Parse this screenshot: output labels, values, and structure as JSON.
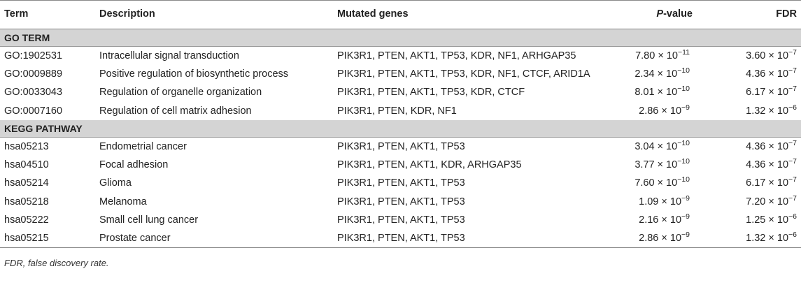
{
  "headers": {
    "term": "Term",
    "description": "Description",
    "genes": "Mutated genes",
    "p_italic": "P",
    "p_rest": "-value",
    "fdr": "FDR"
  },
  "sections": [
    {
      "title": "GO TERM",
      "rows": [
        {
          "term": "GO:1902531",
          "description": "Intracellular signal transduction",
          "genes": "PIK3R1, PTEN, AKT1, TP53, KDR, NF1, ARHGAP35",
          "p_mant": "7.80 × 10",
          "p_exp": "−11",
          "fdr_mant": "3.60 × 10",
          "fdr_exp": "−7"
        },
        {
          "term": "GO:0009889",
          "description": "Positive regulation of biosynthetic process",
          "genes": "PIK3R1, PTEN, AKT1, TP53, KDR, NF1, CTCF, ARID1A",
          "p_mant": "2.34 × 10",
          "p_exp": "−10",
          "fdr_mant": "4.36 × 10",
          "fdr_exp": "−7"
        },
        {
          "term": "GO:0033043",
          "description": "Regulation of organelle organization",
          "genes": "PIK3R1, PTEN, AKT1, TP53, KDR, CTCF",
          "p_mant": "8.01 × 10",
          "p_exp": "−10",
          "fdr_mant": "6.17 × 10",
          "fdr_exp": "−7"
        },
        {
          "term": "GO:0007160",
          "description": "Regulation of cell matrix adhesion",
          "genes": "PIK3R1, PTEN, KDR, NF1",
          "p_mant": "2.86 × 10",
          "p_exp": "−9",
          "fdr_mant": "1.32 × 10",
          "fdr_exp": "−6"
        }
      ]
    },
    {
      "title": "KEGG PATHWAY",
      "rows": [
        {
          "term": "hsa05213",
          "description": "Endometrial cancer",
          "genes": "PIK3R1, PTEN, AKT1, TP53",
          "p_mant": "3.04 × 10",
          "p_exp": "−10",
          "fdr_mant": "4.36 × 10",
          "fdr_exp": "−7"
        },
        {
          "term": "hsa04510",
          "description": "Focal adhesion",
          "genes": "PIK3R1, PTEN, AKT1, KDR, ARHGAP35",
          "p_mant": "3.77 × 10",
          "p_exp": "−10",
          "fdr_mant": "4.36 × 10",
          "fdr_exp": "−7"
        },
        {
          "term": "hsa05214",
          "description": "Glioma",
          "genes": "PIK3R1, PTEN, AKT1, TP53",
          "p_mant": "7.60 × 10",
          "p_exp": "−10",
          "fdr_mant": "6.17 × 10",
          "fdr_exp": "−7"
        },
        {
          "term": "hsa05218",
          "description": "Melanoma",
          "genes": "PIK3R1, PTEN, AKT1, TP53",
          "p_mant": "1.09 × 10",
          "p_exp": "−9",
          "fdr_mant": "7.20 × 10",
          "fdr_exp": "−7"
        },
        {
          "term": "hsa05222",
          "description": "Small cell lung cancer",
          "genes": "PIK3R1, PTEN, AKT1, TP53",
          "p_mant": "2.16 × 10",
          "p_exp": "−9",
          "fdr_mant": "1.25 × 10",
          "fdr_exp": "−6"
        },
        {
          "term": "hsa05215",
          "description": "Prostate cancer",
          "genes": "PIK3R1, PTEN, AKT1, TP53",
          "p_mant": "2.86 × 10",
          "p_exp": "−9",
          "fdr_mant": "1.32 × 10",
          "fdr_exp": "−6"
        }
      ]
    }
  ],
  "footnote": "FDR, false discovery rate."
}
